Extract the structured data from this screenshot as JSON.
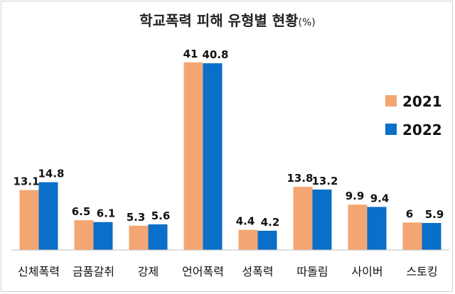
{
  "chart_data": {
    "type": "bar",
    "title": "학교폭력 피해 유형별 현황",
    "title_unit": "(%)",
    "categories": [
      "신체폭력",
      "금품갈취",
      "강제",
      "언어폭력",
      "성폭력",
      "따돌림",
      "사이버",
      "스토킹"
    ],
    "series": [
      {
        "name": "2021",
        "color": "#F4A672",
        "values": [
          13.1,
          6.5,
          5.3,
          41,
          4.4,
          13.8,
          9.9,
          6
        ]
      },
      {
        "name": "2022",
        "color": "#0A6FC8",
        "values": [
          14.8,
          6.1,
          5.6,
          40.8,
          4.2,
          13.2,
          9.4,
          5.9
        ]
      }
    ],
    "value_labels": [
      [
        "13.1",
        "6.5",
        "5.3",
        "41",
        "4.4",
        "13.8",
        "9.9",
        "6"
      ],
      [
        "14.8",
        "6.1",
        "5.6",
        "40.8",
        "4.2",
        "13.2",
        "9.4",
        "5.9"
      ]
    ],
    "ylim": [
      0,
      45
    ],
    "grid": false,
    "legend_position": "right"
  }
}
